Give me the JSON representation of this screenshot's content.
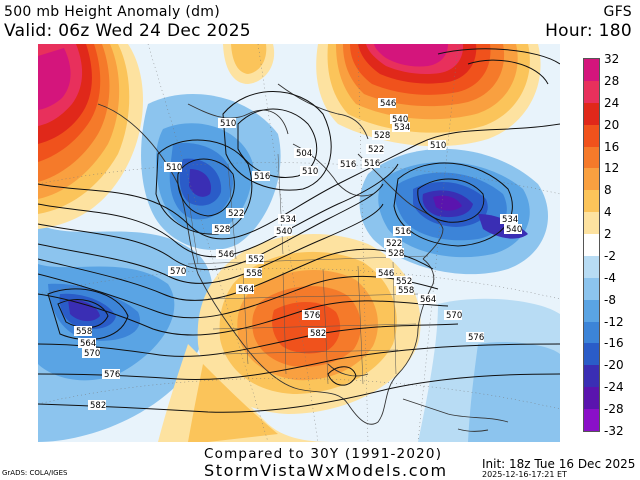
{
  "header": {
    "title": "500 mb Height Anomaly (dm)",
    "valid": "Valid: 06z Wed 24 Dec 2025",
    "model": "GFS",
    "hour": "Hour: 180"
  },
  "colorbar": {
    "labels": [
      "32",
      "28",
      "24",
      "20",
      "16",
      "12",
      "8",
      "4",
      "2",
      "-2",
      "-4",
      "-8",
      "-12",
      "-16",
      "-20",
      "-24",
      "-28",
      "-32"
    ],
    "colors": [
      "#d4157c",
      "#e8305c",
      "#e0281a",
      "#f0521c",
      "#f57a2a",
      "#f9a040",
      "#fbc45a",
      "#fde2a0",
      "#ffffff",
      "#b8dcf4",
      "#8cc4ee",
      "#5aa4e4",
      "#3c84d8",
      "#2a5cc8",
      "#3a2eb4",
      "#5a14ae",
      "#8a10c8"
    ]
  },
  "map": {
    "contour_labels": [
      "510",
      "510",
      "504",
      "510",
      "516",
      "516",
      "522",
      "528",
      "534",
      "540",
      "546",
      "552",
      "558",
      "564",
      "570",
      "576",
      "582",
      "546",
      "540",
      "534",
      "528",
      "522",
      "516",
      "510",
      "516",
      "522",
      "528",
      "534",
      "540",
      "546",
      "552",
      "558",
      "564",
      "570",
      "576",
      "558",
      "564",
      "570",
      "576",
      "582"
    ],
    "highs": [
      "576",
      "582"
    ],
    "lows": [
      "504",
      "510"
    ]
  },
  "footer": {
    "compared": "Compared to 30Y (1991-2020)",
    "site": "StormVistaWxModels.com",
    "init": "Init: 18z Tue 16 Dec 2025",
    "stamp": "2025-12-16-17:21 ET",
    "grads": "GrADS: COLA/IGES"
  }
}
